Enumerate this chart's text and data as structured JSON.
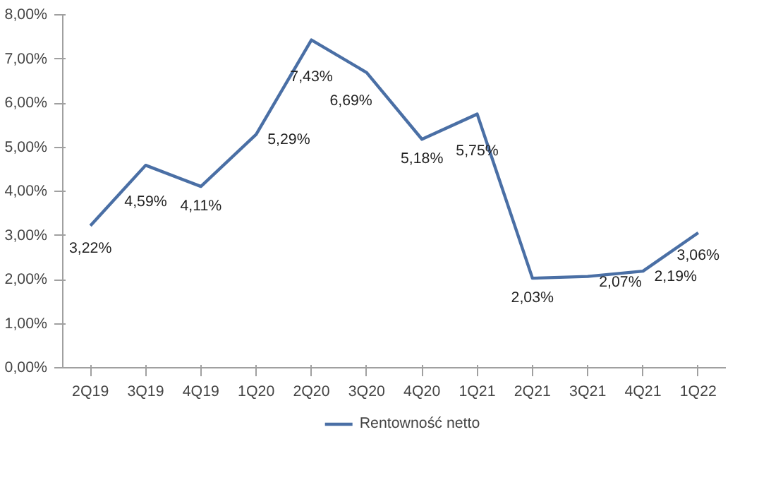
{
  "chart_data": {
    "type": "line",
    "categories": [
      "2Q19",
      "3Q19",
      "4Q19",
      "1Q20",
      "2Q20",
      "3Q20",
      "4Q20",
      "1Q21",
      "2Q21",
      "3Q21",
      "4Q21",
      "1Q22"
    ],
    "series": [
      {
        "name": "Rentowność netto",
        "color": "#4a6fa5",
        "values": [
          3.22,
          4.59,
          4.11,
          5.29,
          7.43,
          6.69,
          5.18,
          5.75,
          2.03,
          2.07,
          2.19,
          3.06
        ],
        "value_labels": [
          "3,22%",
          "4,59%",
          "4,11%",
          "5,29%",
          "7,43%",
          "6,69%",
          "5,18%",
          "5,75%",
          "2,03%",
          "2,07%",
          "2,19%",
          "3,06%"
        ]
      }
    ],
    "ylim": [
      0,
      8
    ],
    "yticks": [
      {
        "value": 0,
        "label": "0,00%"
      },
      {
        "value": 1,
        "label": "1,00%"
      },
      {
        "value": 2,
        "label": "2,00%"
      },
      {
        "value": 3,
        "label": "3,00%"
      },
      {
        "value": 4,
        "label": "4,00%"
      },
      {
        "value": 5,
        "label": "5,00%"
      },
      {
        "value": 6,
        "label": "6,00%"
      },
      {
        "value": 7,
        "label": "7,00%"
      },
      {
        "value": 8,
        "label": "8,00%"
      }
    ],
    "grid": false,
    "legend": "bottom",
    "marker": "none",
    "line_style": "solid"
  }
}
